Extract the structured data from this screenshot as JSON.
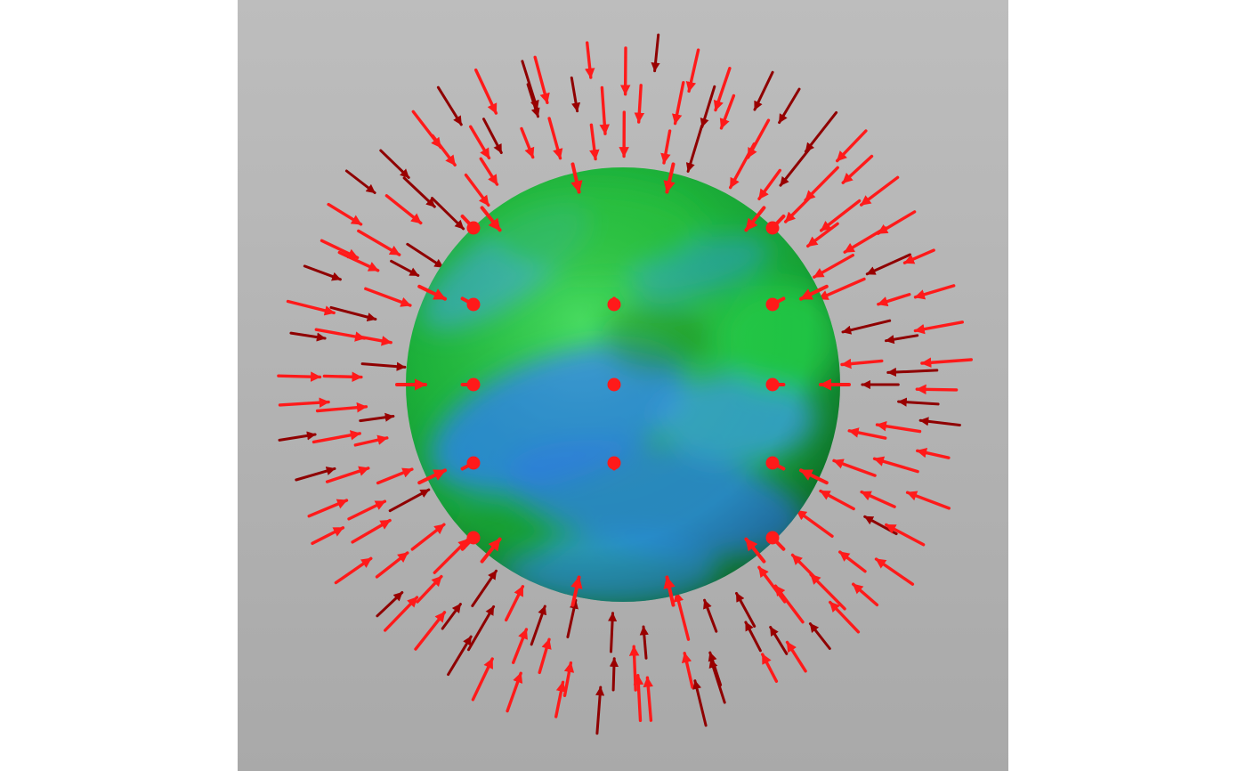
{
  "scene": {
    "subject": "sphere-with-vector-field",
    "background_top_color": "#bdbdbd",
    "background_bottom_color": "#a9a9a9",
    "page_background_color": "#ffffff",
    "sphere_colors": {
      "green": "#1fc81f",
      "blue": "#2c86e6",
      "dark_green": "#118a1a"
    },
    "arrow_color": "#ff1a1a",
    "arrow_shadow_color": "#8f0000",
    "arrow_direction": "inward"
  }
}
